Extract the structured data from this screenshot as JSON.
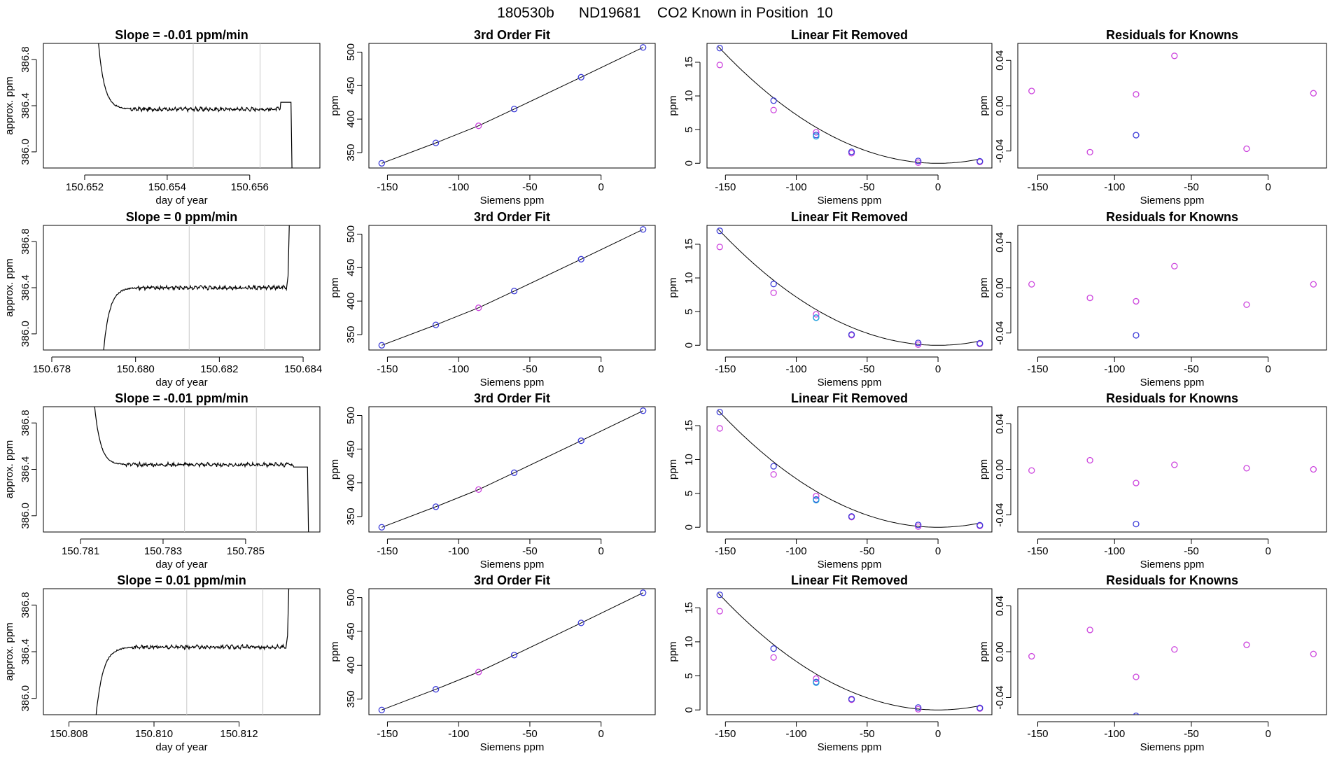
{
  "page_title": "180530b      ND19681    CO2 Known in Position  10",
  "chart_data": [
    {
      "row": 1,
      "type": "line",
      "title": "Slope =  -0.01  ppm/min",
      "xlabel": "day of year",
      "ylabel": "approx. ppm",
      "xticks": [
        "150.652",
        "150.654",
        "150.656"
      ],
      "yticks": [
        "386.0",
        "386.4",
        "386.8"
      ],
      "xlim": [
        150.651,
        150.6577
      ],
      "ylim": [
        385.86,
        386.94
      ],
      "xtick_values": [
        150.652,
        150.654,
        150.656
      ],
      "ytick_values": [
        386.0,
        386.4,
        386.8
      ],
      "window_lines": [
        150.65463,
        150.65625
      ],
      "trace": {
        "start": 150.6523,
        "stable_from": 150.6531,
        "end": 150.65675,
        "edge": 150.657,
        "start_level": 387.1,
        "level": 386.37,
        "end_level": 385.7,
        "edge_level": 386.43
      }
    },
    {
      "row": 1,
      "type": "scatter+line",
      "title": "3rd Order Fit",
      "xlabel": "Siemens ppm",
      "ylabel": "ppm",
      "xticks": [
        "-150",
        "-100",
        "-50",
        "0"
      ],
      "yticks": [
        "350",
        "400",
        "450",
        "500"
      ],
      "xtick_values": [
        -150,
        -100,
        -50,
        0
      ],
      "ytick_values": [
        350,
        400,
        450,
        500
      ],
      "xlim": [
        -163,
        38
      ],
      "ylim": [
        327,
        513
      ],
      "points": {
        "x": [
          -154.0,
          -116.0,
          -86.0,
          -61.0,
          -14.0,
          29.5
        ],
        "y": [
          334,
          364.5,
          390,
          415,
          462.5,
          507
        ]
      },
      "series": [
        {
          "name": "blue",
          "color": "#3b3bd8",
          "points": [
            0,
            1,
            3,
            4,
            5
          ]
        },
        {
          "name": "magenta",
          "color": "#cc44dd",
          "points": [
            2
          ]
        }
      ]
    },
    {
      "row": 1,
      "type": "scatter+line",
      "title": "Linear Fit Removed",
      "xlabel": "Siemens ppm",
      "ylabel": "ppm",
      "xticks": [
        "-150",
        "-100",
        "-50",
        "0"
      ],
      "yticks": [
        "0",
        "5",
        "10",
        "15"
      ],
      "xtick_values": [
        -150,
        -100,
        -50,
        0
      ],
      "ytick_values": [
        0,
        5,
        10,
        15
      ],
      "xlim": [
        -163,
        38
      ],
      "ylim": [
        -0.7,
        17.8
      ],
      "curve_vertex": 0,
      "blue": {
        "x": [
          -154.0,
          -116.0,
          -86.0,
          -61.0,
          -14.0,
          29.5
        ],
        "y": [
          17.1,
          9.3,
          4.2,
          1.7,
          0.35,
          0.3
        ]
      },
      "magenta": {
        "x": [
          -154.0,
          -116.0,
          -86.0,
          -61.0,
          -14.0,
          29.5
        ],
        "y": [
          14.6,
          7.9,
          4.6,
          1.5,
          0.1,
          0.2
        ]
      },
      "cyan": {
        "x": [
          -86.0
        ],
        "y": [
          4.0
        ]
      }
    },
    {
      "row": 1,
      "type": "scatter",
      "title": "Residuals for Knowns",
      "xlabel": "Siemens ppm",
      "ylabel": "ppm",
      "xticks": [
        "-150",
        "-100",
        "-50",
        "0"
      ],
      "yticks": [
        "-0.04",
        "0.00",
        "0.04"
      ],
      "xtick_values": [
        -150,
        -100,
        -50,
        0
      ],
      "ytick_values": [
        -0.04,
        0.0,
        0.04
      ],
      "xlim": [
        -163,
        38
      ],
      "ylim": [
        -0.055,
        0.055
      ],
      "magenta": {
        "x": [
          -154.0,
          -116.0,
          -86.0,
          -61.0,
          -14.0,
          29.5
        ],
        "y": [
          0.013,
          -0.041,
          0.01,
          0.044,
          -0.038,
          0.011
        ]
      },
      "blue": {
        "x": [
          -86.0
        ],
        "y": [
          -0.026
        ]
      }
    },
    {
      "row": 2,
      "type": "line",
      "title": "Slope =  0  ppm/min",
      "xlabel": "day of year",
      "ylabel": "approx. ppm",
      "xticks": [
        "150.678",
        "150.680",
        "150.682",
        "150.684"
      ],
      "yticks": [
        "386.0",
        "386.4",
        "386.8"
      ],
      "xtick_values": [
        150.678,
        150.68,
        150.682,
        150.684
      ],
      "ytick_values": [
        386.0,
        386.4,
        386.8
      ],
      "xlim": [
        150.6778,
        150.6844
      ],
      "ylim": [
        385.86,
        386.94
      ],
      "window_lines": [
        150.68128,
        150.68308
      ],
      "trace": {
        "start": 150.6792,
        "stable_from": 150.68,
        "end": 150.6836,
        "start_level": 385.7,
        "level": 386.4,
        "end_level": 387.1
      }
    },
    {
      "row": 2,
      "type": "scatter+line",
      "title": "3rd Order Fit",
      "xlabel": "Siemens ppm",
      "ylabel": "ppm",
      "xticks": [
        "-150",
        "-100",
        "-50",
        "0"
      ],
      "yticks": [
        "350",
        "400",
        "450",
        "500"
      ],
      "xtick_values": [
        -150,
        -100,
        -50,
        0
      ],
      "ytick_values": [
        350,
        400,
        450,
        500
      ],
      "xlim": [
        -163,
        38
      ],
      "ylim": [
        327,
        513
      ],
      "points": {
        "x": [
          -154.0,
          -116.0,
          -86.0,
          -61.0,
          -14.0,
          29.5
        ],
        "y": [
          334,
          364.5,
          390,
          415,
          462.5,
          507
        ]
      },
      "series": [
        {
          "name": "blue",
          "color": "#3b3bd8",
          "points": [
            0,
            1,
            3,
            4,
            5
          ]
        },
        {
          "name": "magenta",
          "color": "#cc44dd",
          "points": [
            2
          ]
        }
      ]
    },
    {
      "row": 2,
      "type": "scatter+line",
      "title": "Linear Fit Removed",
      "xlabel": "Siemens ppm",
      "ylabel": "ppm",
      "xticks": [
        "-150",
        "-100",
        "-50",
        "0"
      ],
      "yticks": [
        "0",
        "5",
        "10",
        "15"
      ],
      "xtick_values": [
        -150,
        -100,
        -50,
        0
      ],
      "ytick_values": [
        0,
        5,
        10,
        15
      ],
      "xlim": [
        -163,
        38
      ],
      "ylim": [
        -0.7,
        17.8
      ],
      "curve_vertex": 0,
      "blue": {
        "x": [
          -154.0,
          -116.0,
          -86.0,
          -61.0,
          -14.0,
          29.5
        ],
        "y": [
          17.0,
          9.1,
          4.1,
          1.6,
          0.35,
          0.3
        ]
      },
      "magenta": {
        "x": [
          -154.0,
          -116.0,
          -86.0,
          -61.0,
          -14.0,
          29.5
        ],
        "y": [
          14.6,
          7.8,
          4.6,
          1.5,
          0.1,
          0.2
        ]
      },
      "cyan": {
        "x": [
          -86.0
        ],
        "y": [
          4.1
        ]
      }
    },
    {
      "row": 2,
      "type": "scatter",
      "title": "Residuals for Knowns",
      "xlabel": "Siemens ppm",
      "ylabel": "ppm",
      "xticks": [
        "-150",
        "-100",
        "-50",
        "0"
      ],
      "yticks": [
        "-0.04",
        "0.00",
        "0.04"
      ],
      "xtick_values": [
        -150,
        -100,
        -50,
        0
      ],
      "ytick_values": [
        -0.04,
        0.0,
        0.04
      ],
      "xlim": [
        -163,
        38
      ],
      "ylim": [
        -0.055,
        0.055
      ],
      "magenta": {
        "x": [
          -154.0,
          -116.0,
          -86.0,
          -61.0,
          -14.0,
          29.5
        ],
        "y": [
          0.003,
          -0.009,
          -0.012,
          0.019,
          -0.015,
          0.003
        ]
      },
      "blue": {
        "x": [
          -86.0
        ],
        "y": [
          -0.042
        ]
      }
    },
    {
      "row": 3,
      "type": "line",
      "title": "Slope =  -0.01  ppm/min",
      "xlabel": "day of year",
      "ylabel": "approx. ppm",
      "xticks": [
        "150.781",
        "150.783",
        "150.785"
      ],
      "yticks": [
        "386.0",
        "386.4",
        "386.8"
      ],
      "xtick_values": [
        150.781,
        150.783,
        150.785
      ],
      "ytick_values": [
        386.0,
        386.4,
        386.8
      ],
      "xlim": [
        150.7801,
        150.7868
      ],
      "ylim": [
        385.86,
        386.94
      ],
      "window_lines": [
        150.78352,
        150.78526
      ],
      "trace": {
        "start": 150.7813,
        "stable_from": 150.7821,
        "end": 150.78615,
        "edge": 150.7865,
        "start_level": 387.1,
        "level": 386.44,
        "end_level": 385.7,
        "edge_level": 386.42
      }
    },
    {
      "row": 3,
      "type": "scatter+line",
      "title": "3rd Order Fit",
      "xlabel": "Siemens ppm",
      "ylabel": "ppm",
      "xticks": [
        "-150",
        "-100",
        "-50",
        "0"
      ],
      "yticks": [
        "350",
        "400",
        "450",
        "500"
      ],
      "xtick_values": [
        -150,
        -100,
        -50,
        0
      ],
      "ytick_values": [
        350,
        400,
        450,
        500
      ],
      "xlim": [
        -163,
        38
      ],
      "ylim": [
        327,
        513
      ],
      "points": {
        "x": [
          -154.0,
          -116.0,
          -86.0,
          -61.0,
          -14.0,
          29.5
        ],
        "y": [
          334,
          364.5,
          390,
          415,
          462.5,
          507
        ]
      },
      "series": [
        {
          "name": "blue",
          "color": "#3b3bd8",
          "points": [
            0,
            1,
            3,
            4,
            5
          ]
        },
        {
          "name": "magenta",
          "color": "#cc44dd",
          "points": [
            2
          ]
        }
      ]
    },
    {
      "row": 3,
      "type": "scatter+line",
      "title": "Linear Fit Removed",
      "xlabel": "Siemens ppm",
      "ylabel": "ppm",
      "xticks": [
        "-150",
        "-100",
        "-50",
        "0"
      ],
      "yticks": [
        "0",
        "5",
        "10",
        "15"
      ],
      "xtick_values": [
        -150,
        -100,
        -50,
        0
      ],
      "ytick_values": [
        0,
        5,
        10,
        15
      ],
      "xlim": [
        -163,
        38
      ],
      "ylim": [
        -0.7,
        17.8
      ],
      "curve_vertex": 0,
      "blue": {
        "x": [
          -154.0,
          -116.0,
          -86.0,
          -61.0,
          -14.0,
          29.5
        ],
        "y": [
          17.0,
          9.0,
          4.1,
          1.6,
          0.35,
          0.3
        ]
      },
      "magenta": {
        "x": [
          -154.0,
          -116.0,
          -86.0,
          -61.0,
          -14.0,
          29.5
        ],
        "y": [
          14.6,
          7.8,
          4.6,
          1.5,
          0.1,
          0.2
        ]
      },
      "cyan": {
        "x": [
          -86.0
        ],
        "y": [
          4.0
        ]
      }
    },
    {
      "row": 3,
      "type": "scatter",
      "title": "Residuals for Knowns",
      "xlabel": "Siemens ppm",
      "ylabel": "ppm",
      "xticks": [
        "-150",
        "-100",
        "-50",
        "0"
      ],
      "yticks": [
        "-0.04",
        "0.00",
        "0.04"
      ],
      "xtick_values": [
        -150,
        -100,
        -50,
        0
      ],
      "ytick_values": [
        -0.04,
        0.0,
        0.04
      ],
      "xlim": [
        -163,
        38
      ],
      "ylim": [
        -0.055,
        0.055
      ],
      "magenta": {
        "x": [
          -154.0,
          -116.0,
          -86.0,
          -61.0,
          -14.0,
          29.5
        ],
        "y": [
          -0.001,
          0.008,
          -0.012,
          0.004,
          0.001,
          0.0
        ]
      },
      "blue": {
        "x": [
          -86.0
        ],
        "y": [
          -0.048
        ]
      }
    },
    {
      "row": 4,
      "type": "line",
      "title": "Slope =  0.01  ppm/min",
      "xlabel": "day of year",
      "ylabel": "approx. ppm",
      "xticks": [
        "150.808",
        "150.810",
        "150.812"
      ],
      "yticks": [
        "386.0",
        "386.4",
        "386.8"
      ],
      "xtick_values": [
        150.808,
        150.81,
        150.812
      ],
      "ytick_values": [
        386.0,
        386.4,
        386.8
      ],
      "xlim": [
        150.8074,
        150.8139
      ],
      "ylim": [
        385.86,
        386.94
      ],
      "window_lines": [
        150.81077,
        150.81256
      ],
      "trace": {
        "start": 150.8086,
        "stable_from": 150.8095,
        "end": 150.8131,
        "start_level": 385.7,
        "level": 386.44,
        "end_level": 387.1
      }
    },
    {
      "row": 4,
      "type": "scatter+line",
      "title": "3rd Order Fit",
      "xlabel": "Siemens ppm",
      "ylabel": "ppm",
      "xticks": [
        "-150",
        "-100",
        "-50",
        "0"
      ],
      "yticks": [
        "350",
        "400",
        "450",
        "500"
      ],
      "xtick_values": [
        -150,
        -100,
        -50,
        0
      ],
      "ytick_values": [
        350,
        400,
        450,
        500
      ],
      "xlim": [
        -163,
        38
      ],
      "ylim": [
        327,
        513
      ],
      "points": {
        "x": [
          -154.0,
          -116.0,
          -86.0,
          -61.0,
          -14.0,
          29.5
        ],
        "y": [
          334,
          364.5,
          390,
          415,
          462.5,
          507
        ]
      },
      "series": [
        {
          "name": "blue",
          "color": "#3b3bd8",
          "points": [
            0,
            1,
            3,
            4,
            5
          ]
        },
        {
          "name": "magenta",
          "color": "#cc44dd",
          "points": [
            2
          ]
        }
      ]
    },
    {
      "row": 4,
      "type": "scatter+line",
      "title": "Linear Fit Removed",
      "xlabel": "Siemens ppm",
      "ylabel": "ppm",
      "xticks": [
        "-150",
        "-100",
        "-50",
        "0"
      ],
      "yticks": [
        "0",
        "5",
        "10",
        "15"
      ],
      "xtick_values": [
        -150,
        -100,
        -50,
        0
      ],
      "ytick_values": [
        0,
        5,
        10,
        15
      ],
      "xlim": [
        -163,
        38
      ],
      "ylim": [
        -0.7,
        17.8
      ],
      "curve_vertex": 0,
      "blue": {
        "x": [
          -154.0,
          -116.0,
          -86.0,
          -61.0,
          -14.0,
          29.5
        ],
        "y": [
          16.9,
          9.0,
          4.1,
          1.6,
          0.35,
          0.3
        ]
      },
      "magenta": {
        "x": [
          -154.0,
          -116.0,
          -86.0,
          -61.0,
          -14.0,
          29.5
        ],
        "y": [
          14.5,
          7.7,
          4.6,
          1.5,
          0.1,
          0.2
        ]
      },
      "cyan": {
        "x": [
          -86.0
        ],
        "y": [
          4.0
        ]
      }
    },
    {
      "row": 4,
      "type": "scatter",
      "title": "Residuals for Knowns",
      "xlabel": "Siemens ppm",
      "ylabel": "ppm",
      "xticks": [
        "-150",
        "-100",
        "-50",
        "0"
      ],
      "yticks": [
        "-0.04",
        "0.00",
        "0.04"
      ],
      "xtick_values": [
        -150,
        -100,
        -50,
        0
      ],
      "ytick_values": [
        -0.04,
        0.0,
        0.04
      ],
      "xlim": [
        -163,
        38
      ],
      "ylim": [
        -0.055,
        0.055
      ],
      "magenta": {
        "x": [
          -154.0,
          -116.0,
          -86.0,
          -61.0,
          -14.0,
          29.5
        ],
        "y": [
          -0.004,
          0.019,
          -0.022,
          0.002,
          0.006,
          -0.002
        ]
      },
      "blue": {
        "x": [
          -86.0
        ],
        "y": [
          -0.056
        ]
      }
    }
  ],
  "colors": {
    "axis": "#000000",
    "window_line": "#c8c8c8",
    "trace": "#000000",
    "blue": "#3b3bd8",
    "magenta": "#cc44dd",
    "cyan": "#22aadd",
    "fit": "#000000"
  }
}
